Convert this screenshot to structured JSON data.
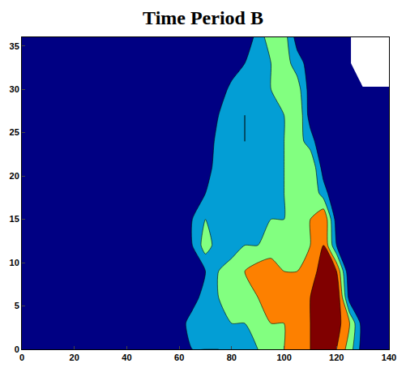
{
  "chart_data": {
    "type": "contour",
    "title": "Time Period B",
    "x": [
      0,
      5,
      10,
      15,
      20,
      25,
      30,
      35,
      40,
      45,
      50,
      55,
      60,
      65,
      70,
      75,
      80,
      85,
      90,
      95,
      100,
      105,
      110,
      115,
      120,
      125,
      130,
      135,
      140
    ],
    "y": [
      0,
      3,
      6,
      9,
      12,
      15,
      18,
      21,
      24,
      27,
      30,
      33,
      36
    ],
    "z": [
      [
        0,
        0,
        0,
        0,
        0,
        0,
        0,
        0,
        0,
        0,
        0,
        0,
        1,
        2,
        2,
        2,
        3,
        3,
        4,
        5,
        6,
        7,
        8,
        9,
        8,
        5,
        1,
        0,
        0
      ],
      [
        0,
        0,
        0,
        0,
        0,
        0,
        0,
        0,
        0,
        0,
        0,
        1,
        1,
        3,
        3,
        4,
        4,
        4,
        5,
        6,
        6,
        7,
        8,
        9,
        9,
        6,
        1,
        0,
        0
      ],
      [
        0,
        0,
        0,
        0,
        0,
        0,
        0,
        0,
        0,
        0,
        0,
        1,
        1,
        1,
        3,
        4,
        5,
        5,
        6,
        7,
        7,
        7,
        8,
        9,
        10,
        1,
        0,
        0,
        0
      ],
      [
        0,
        0,
        0,
        0,
        0,
        0,
        0,
        0,
        0,
        0,
        0,
        0,
        1,
        1,
        2,
        4,
        5,
        6,
        7,
        7,
        6,
        6,
        7,
        9,
        8,
        0,
        0,
        0,
        0
      ],
      [
        0,
        0,
        0,
        0,
        0,
        0,
        0,
        0,
        0,
        0,
        0,
        0,
        1,
        2,
        5,
        3,
        3,
        4,
        4,
        5,
        5,
        5,
        6,
        8,
        2,
        0,
        0,
        0,
        0
      ],
      [
        0,
        0,
        0,
        0,
        0,
        0,
        0,
        0,
        0,
        0,
        0,
        0,
        1,
        2,
        4,
        3,
        3,
        3,
        4,
        4,
        4,
        5,
        6,
        8,
        1,
        0,
        0,
        0,
        0
      ],
      [
        0,
        0,
        0,
        0,
        0,
        0,
        0,
        0,
        0,
        0,
        0,
        0,
        0,
        1,
        2,
        3,
        3,
        3,
        3,
        4,
        4,
        5,
        6,
        3,
        0,
        0,
        0,
        0,
        0
      ],
      [
        0,
        0,
        0,
        0,
        0,
        0,
        0,
        0,
        0,
        0,
        0,
        0,
        0,
        0,
        1,
        3,
        3,
        3,
        3,
        4,
        4,
        5,
        6,
        1,
        0,
        0,
        0,
        0,
        0
      ],
      [
        0,
        0,
        0,
        0,
        0,
        0,
        0,
        0,
        0,
        0,
        0,
        0,
        0,
        0,
        0,
        3,
        4,
        2,
        3,
        4,
        4,
        5,
        3,
        0,
        0,
        0,
        0,
        0,
        0
      ],
      [
        0,
        0,
        0,
        0,
        0,
        0,
        0,
        0,
        0,
        0,
        0,
        0,
        0,
        0,
        0,
        2,
        4,
        2,
        3,
        4,
        4,
        6,
        1,
        0,
        0,
        0,
        0,
        0,
        0
      ],
      [
        0,
        0,
        0,
        0,
        0,
        0,
        0,
        0,
        0,
        0,
        0,
        0,
        0,
        0,
        0,
        0,
        3,
        3,
        2,
        4,
        5,
        5,
        1,
        0,
        0,
        0,
        0,
        0,
        0
      ],
      [
        0,
        0,
        0,
        0,
        0,
        0,
        0,
        0,
        0,
        0,
        0,
        0,
        0,
        0,
        0,
        0,
        0,
        2,
        3,
        4,
        5,
        3,
        1,
        0,
        0,
        0,
        null,
        null,
        null
      ],
      [
        0,
        0,
        0,
        0,
        0,
        0,
        0,
        0,
        0,
        0,
        0,
        0,
        0,
        0,
        0,
        0,
        0,
        0,
        3,
        5,
        5,
        1,
        0,
        0,
        0,
        0,
        null,
        null,
        null
      ]
    ],
    "zlim": [
      0,
      10
    ],
    "xlim": [
      0,
      140
    ],
    "xticks": [
      0,
      20,
      40,
      60,
      80,
      100,
      120,
      140
    ],
    "ylim": [
      0,
      36
    ],
    "yticks": [
      0,
      5,
      10,
      15,
      20,
      25,
      30,
      35
    ],
    "grid": false
  }
}
